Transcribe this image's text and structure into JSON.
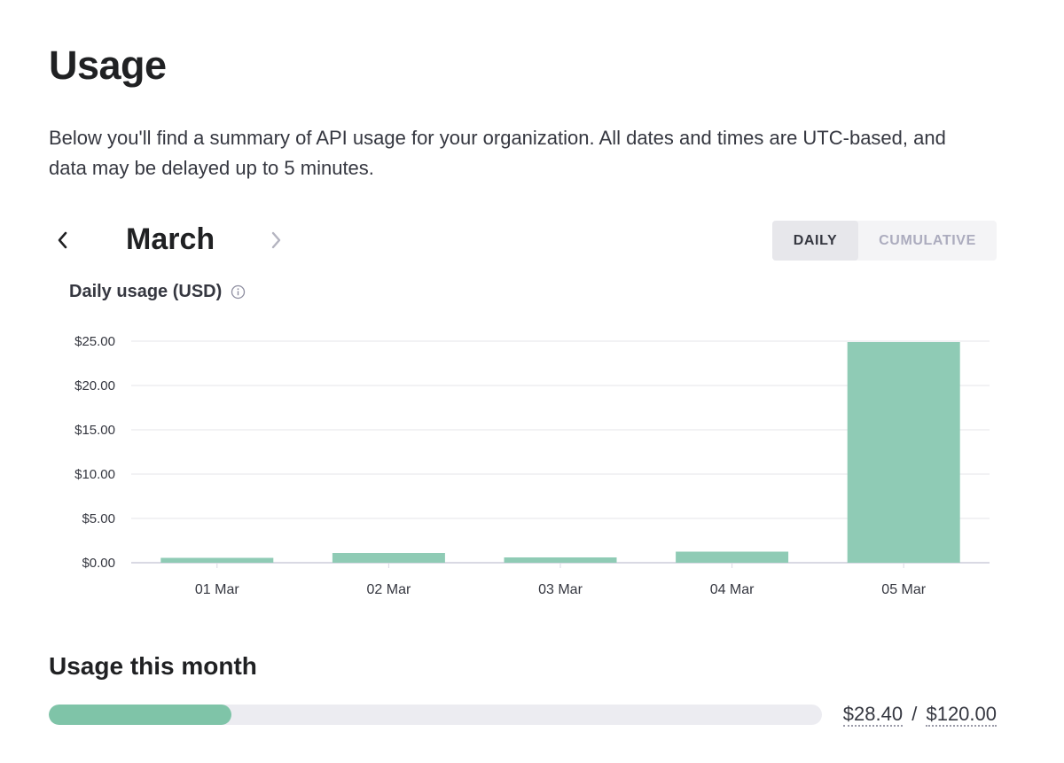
{
  "page": {
    "title": "Usage",
    "intro": "Below you'll find a summary of API usage for your organization. All dates and times are UTC-based, and data may be delayed up to 5 minutes."
  },
  "month_nav": {
    "month": "March",
    "prev_icon": "chevron-left-icon",
    "next_icon": "chevron-right-icon"
  },
  "view_toggle": {
    "daily_label": "DAILY",
    "cumulative_label": "CUMULATIVE",
    "selected": "DAILY"
  },
  "chart_section": {
    "title": "Daily usage (USD)",
    "info_icon": "info-icon"
  },
  "chart_data": {
    "type": "bar",
    "title": "Daily usage (USD)",
    "categories": [
      "01 Mar",
      "02 Mar",
      "03 Mar",
      "04 Mar",
      "05 Mar"
    ],
    "values": [
      0.55,
      1.1,
      0.6,
      1.25,
      24.9
    ],
    "ylim": [
      0,
      25
    ],
    "yticks": [
      0,
      5,
      10,
      15,
      20,
      25
    ],
    "ytick_labels": [
      "$0.00",
      "$5.00",
      "$10.00",
      "$15.00",
      "$20.00",
      "$25.00"
    ],
    "xlabel": "",
    "ylabel": "",
    "grid": true,
    "bar_color": "#8fcbb5"
  },
  "usage_month": {
    "title": "Usage this month",
    "used": "$28.40",
    "limit": "$120.00",
    "separator": "/",
    "fraction": 0.2367
  },
  "colors": {
    "accent": "#7fc4a8",
    "track": "#ececf1",
    "text": "#202123"
  }
}
